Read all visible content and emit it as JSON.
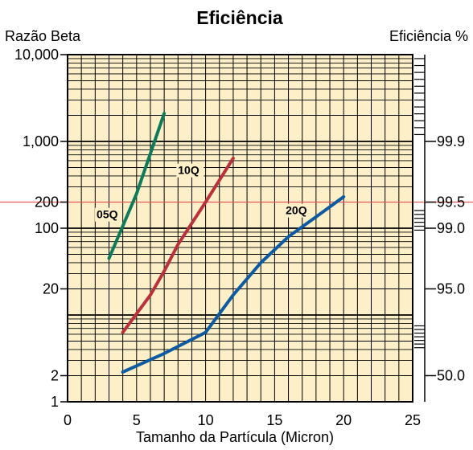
{
  "chart_data": {
    "type": "line",
    "title": "Eficiência",
    "xlabel": "Tamanho da Partícula (Micron)",
    "ylabel_left": "Razão Beta",
    "ylabel_right": "Eficiência %",
    "x_scale": "linear",
    "y_scale": "log",
    "xlim": [
      0,
      25
    ],
    "ylim": [
      1,
      10000
    ],
    "x_ticks": [
      "0",
      "5",
      "10",
      "15",
      "20",
      "25"
    ],
    "y_ticks_left": [
      {
        "value": 10000,
        "label": "10,000"
      },
      {
        "value": 1000,
        "label": "1,000"
      },
      {
        "value": 200,
        "label": "200",
        "highlight": true
      },
      {
        "value": 100,
        "label": "100"
      },
      {
        "value": 20,
        "label": "20"
      },
      {
        "value": 2,
        "label": "2"
      },
      {
        "value": 1,
        "label": "1"
      }
    ],
    "y_ticks_right": [
      {
        "beta": 1000,
        "label": "99.9"
      },
      {
        "beta": 200,
        "label": "99.5",
        "highlight": true
      },
      {
        "beta": 100,
        "label": "99.0"
      },
      {
        "beta": 20,
        "label": "95.0"
      },
      {
        "beta": 2,
        "label": "50.0"
      }
    ],
    "reference_line": {
      "beta": 200,
      "color": "#e85a5a"
    },
    "background_color": "#fdf0c8",
    "grid": true,
    "series": [
      {
        "name": "05Q",
        "color": "#0e7a5a",
        "label_at": {
          "x": 2.1,
          "y": 130
        },
        "points": [
          [
            3,
            45
          ],
          [
            5,
            250
          ],
          [
            7,
            2100
          ]
        ]
      },
      {
        "name": "10Q",
        "color": "#b8323c",
        "label_at": {
          "x": 8.0,
          "y": 420
        },
        "points": [
          [
            4,
            6.3
          ],
          [
            6,
            17
          ],
          [
            7,
            32
          ],
          [
            8,
            65
          ],
          [
            10,
            200
          ],
          [
            12,
            640
          ]
        ]
      },
      {
        "name": "20Q",
        "color": "#0e5aa0",
        "label_at": {
          "x": 15.8,
          "y": 145
        },
        "points": [
          [
            4,
            2.2
          ],
          [
            7,
            3.6
          ],
          [
            10,
            6.3
          ],
          [
            12,
            17
          ],
          [
            14,
            40
          ],
          [
            16,
            80
          ],
          [
            18,
            135
          ],
          [
            20,
            230
          ]
        ]
      }
    ]
  }
}
